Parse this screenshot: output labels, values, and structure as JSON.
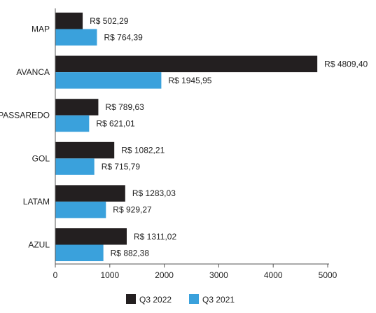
{
  "chart_data": {
    "type": "bar",
    "orientation": "horizontal",
    "categories": [
      "MAP",
      "AVANCA",
      "PASSAREDO",
      "GOL",
      "LATAM",
      "AZUL"
    ],
    "series": [
      {
        "name": "Q3 2022",
        "color": "#231f20",
        "values": [
          502.29,
          4809.4,
          789.63,
          1082.21,
          1283.03,
          1311.02
        ],
        "labels": [
          "R$ 502,29",
          "R$ 4809,40",
          "R$ 789,63",
          "R$ 1082,21",
          "R$ 1283,03",
          "R$ 1311,02"
        ]
      },
      {
        "name": "Q3 2021",
        "color": "#3aa1dc",
        "values": [
          764.39,
          1945.95,
          621.01,
          715.79,
          929.27,
          882.38
        ],
        "labels": [
          "R$ 764,39",
          "R$ 1945,95",
          "R$ 621,01",
          "R$ 715,79",
          "R$ 929,27",
          "R$ 882,38"
        ]
      }
    ],
    "xlim": [
      0,
      5000
    ],
    "xticks": [
      0,
      1000,
      2000,
      3000,
      4000,
      5000
    ],
    "xtick_labels": [
      "0",
      "1000",
      "2000",
      "3000",
      "4000",
      "5000"
    ],
    "grid": false,
    "legend_position": "bottom"
  }
}
